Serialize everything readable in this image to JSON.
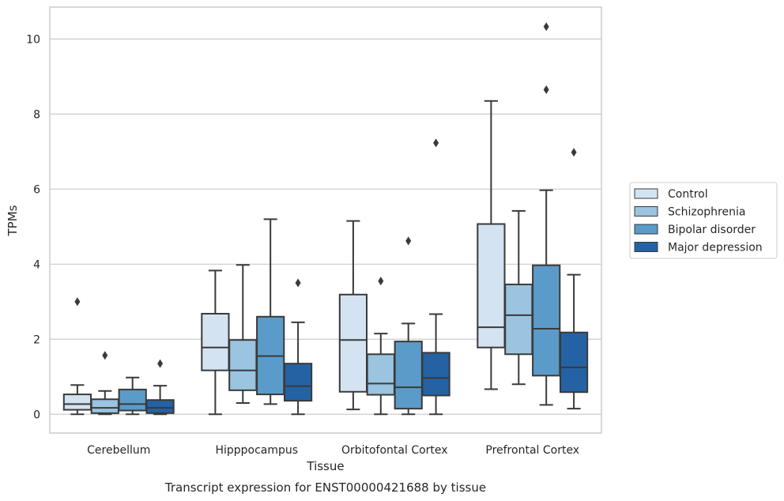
{
  "chart_data": {
    "type": "boxplot",
    "title": "Transcript expression for ENST00000421688 by tissue",
    "xlabel": "Tissue",
    "ylabel": "TPMs",
    "ylim": [
      -0.5,
      10.85
    ],
    "yticks": [
      0,
      2,
      4,
      6,
      8,
      10
    ],
    "grid": "horizontal",
    "legend_position": "right",
    "categories": [
      "Cerebellum",
      "Hipppocampus",
      "Orbitofontal Cortex",
      "Prefrontal Cortex"
    ],
    "series": [
      {
        "name": "Control",
        "color": "#d4e3f1",
        "boxes": [
          {
            "whislo": 0.0,
            "q1": 0.12,
            "med": 0.27,
            "q3": 0.53,
            "whishi": 0.78,
            "fliers": [
              3.0
            ]
          },
          {
            "whislo": 0.0,
            "q1": 1.17,
            "med": 1.78,
            "q3": 2.68,
            "whishi": 3.83,
            "fliers": []
          },
          {
            "whislo": 0.13,
            "q1": 0.6,
            "med": 1.98,
            "q3": 3.19,
            "whishi": 5.15,
            "fliers": []
          },
          {
            "whislo": 0.67,
            "q1": 1.78,
            "med": 2.32,
            "q3": 5.07,
            "whishi": 8.35,
            "fliers": []
          }
        ]
      },
      {
        "name": "Schizophrenia",
        "color": "#9ac4df",
        "boxes": [
          {
            "whislo": 0.0,
            "q1": 0.03,
            "med": 0.17,
            "q3": 0.4,
            "whishi": 0.62,
            "fliers": [
              1.57
            ]
          },
          {
            "whislo": 0.3,
            "q1": 0.64,
            "med": 1.17,
            "q3": 1.98,
            "whishi": 3.98,
            "fliers": []
          },
          {
            "whislo": 0.0,
            "q1": 0.52,
            "med": 0.82,
            "q3": 1.6,
            "whishi": 2.15,
            "fliers": [
              3.55
            ]
          },
          {
            "whislo": 0.8,
            "q1": 1.6,
            "med": 2.64,
            "q3": 3.46,
            "whishi": 5.42,
            "fliers": []
          }
        ]
      },
      {
        "name": "Bipolar disorder",
        "color": "#5a9bc9",
        "boxes": [
          {
            "whislo": 0.0,
            "q1": 0.1,
            "med": 0.27,
            "q3": 0.66,
            "whishi": 0.98,
            "fliers": []
          },
          {
            "whislo": 0.27,
            "q1": 0.53,
            "med": 1.55,
            "q3": 2.6,
            "whishi": 5.2,
            "fliers": []
          },
          {
            "whislo": 0.0,
            "q1": 0.15,
            "med": 0.72,
            "q3": 1.94,
            "whishi": 2.42,
            "fliers": [
              4.62
            ]
          },
          {
            "whislo": 0.25,
            "q1": 1.03,
            "med": 2.28,
            "q3": 3.97,
            "whishi": 5.97,
            "fliers": [
              8.65,
              10.33
            ]
          }
        ]
      },
      {
        "name": "Major depression",
        "color": "#2462a4",
        "boxes": [
          {
            "whislo": 0.0,
            "q1": 0.03,
            "med": 0.17,
            "q3": 0.38,
            "whishi": 0.76,
            "fliers": [
              1.35
            ]
          },
          {
            "whislo": 0.0,
            "q1": 0.36,
            "med": 0.75,
            "q3": 1.35,
            "whishi": 2.45,
            "fliers": [
              3.5
            ]
          },
          {
            "whislo": 0.0,
            "q1": 0.5,
            "med": 0.97,
            "q3": 1.64,
            "whishi": 2.67,
            "fliers": [
              7.23
            ]
          },
          {
            "whislo": 0.15,
            "q1": 0.59,
            "med": 1.25,
            "q3": 2.18,
            "whishi": 3.72,
            "fliers": [
              6.98
            ]
          }
        ]
      }
    ]
  }
}
